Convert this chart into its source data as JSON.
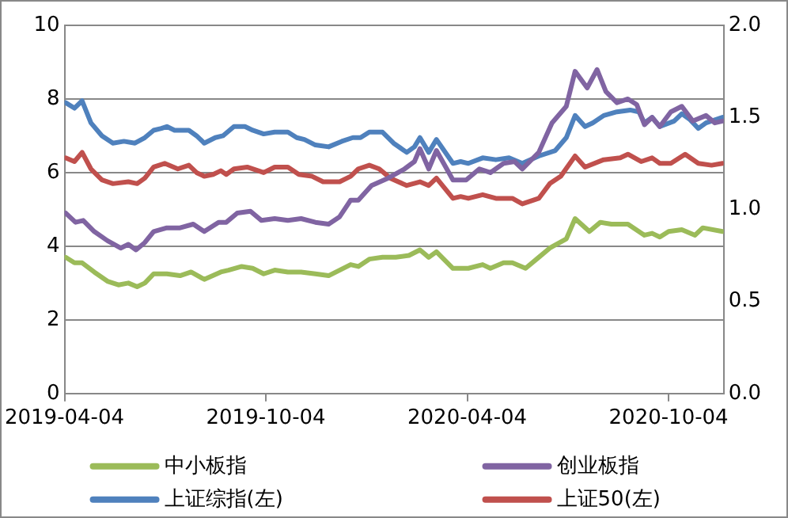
{
  "chart_data": {
    "type": "line",
    "xlim": [
      "2019-04-04",
      "2020-11-23"
    ],
    "xticks": [
      "2019-04-04",
      "2019-10-04",
      "2020-04-04",
      "2020-10-04"
    ],
    "ylim": [
      0,
      10
    ],
    "yticks": [
      0,
      2,
      4,
      6,
      8,
      10
    ],
    "y2lim": [
      0,
      2
    ],
    "y2ticks": [
      {
        "value": 0,
        "label": "0.0"
      },
      {
        "value": 0.5,
        "label": "0.5"
      },
      {
        "value": 1,
        "label": "1.0"
      },
      {
        "value": 1.5,
        "label": "1.5"
      },
      {
        "value": 2,
        "label": "2.0"
      }
    ],
    "grid": "y",
    "legend": "bottom",
    "marker": "none",
    "line_style": "solid",
    "series": [
      {
        "name": "中小板指",
        "color": "#9bbb59",
        "axis": "y2",
        "x": [
          "2019-04-05",
          "2019-04-13",
          "2019-04-20",
          "2019-05-01",
          "2019-05-13",
          "2019-05-23",
          "2019-06-01",
          "2019-06-09",
          "2019-06-16",
          "2019-06-24",
          "2019-07-06",
          "2019-07-18",
          "2019-07-28",
          "2019-08-09",
          "2019-08-24",
          "2019-08-31",
          "2019-09-12",
          "2019-09-22",
          "2019-10-02",
          "2019-10-12",
          "2019-10-24",
          "2019-11-05",
          "2019-11-18",
          "2019-11-30",
          "2019-12-10",
          "2019-12-20",
          "2019-12-27",
          "2020-01-06",
          "2020-01-18",
          "2020-01-30",
          "2020-02-11",
          "2020-02-21",
          "2020-02-29",
          "2020-03-07",
          "2020-03-22",
          "2020-04-05",
          "2020-04-18",
          "2020-04-25",
          "2020-05-07",
          "2020-05-15",
          "2020-05-27",
          "2020-06-08",
          "2020-06-18",
          "2020-07-03",
          "2020-07-11",
          "2020-07-24",
          "2020-08-03",
          "2020-08-13",
          "2020-08-28",
          "2020-09-12",
          "2020-09-19",
          "2020-09-26",
          "2020-10-04",
          "2020-10-16",
          "2020-10-28",
          "2020-11-04",
          "2020-11-22"
        ],
        "values": [
          0.74,
          0.71,
          0.71,
          0.66,
          0.61,
          0.59,
          0.6,
          0.58,
          0.6,
          0.65,
          0.65,
          0.64,
          0.66,
          0.62,
          0.66,
          0.67,
          0.69,
          0.68,
          0.65,
          0.67,
          0.66,
          0.66,
          0.65,
          0.64,
          0.67,
          0.7,
          0.69,
          0.73,
          0.74,
          0.74,
          0.75,
          0.78,
          0.74,
          0.77,
          0.68,
          0.68,
          0.7,
          0.68,
          0.71,
          0.71,
          0.68,
          0.74,
          0.79,
          0.84,
          0.95,
          0.88,
          0.93,
          0.92,
          0.92,
          0.86,
          0.87,
          0.85,
          0.88,
          0.89,
          0.86,
          0.9,
          0.88
        ]
      },
      {
        "name": "创业板指",
        "color": "#8064a2",
        "axis": "y2",
        "x": [
          "2019-04-05",
          "2019-04-14",
          "2019-04-21",
          "2019-05-01",
          "2019-05-13",
          "2019-05-25",
          "2019-06-01",
          "2019-06-08",
          "2019-06-16",
          "2019-06-24",
          "2019-07-06",
          "2019-07-18",
          "2019-07-30",
          "2019-08-09",
          "2019-08-22",
          "2019-08-29",
          "2019-09-08",
          "2019-09-20",
          "2019-09-30",
          "2019-10-12",
          "2019-10-24",
          "2019-11-05",
          "2019-11-18",
          "2019-11-30",
          "2019-12-10",
          "2019-12-20",
          "2019-12-27",
          "2020-01-08",
          "2020-01-23",
          "2020-02-07",
          "2020-02-16",
          "2020-02-21",
          "2020-02-29",
          "2020-03-07",
          "2020-03-22",
          "2020-04-03",
          "2020-04-15",
          "2020-04-25",
          "2020-05-07",
          "2020-05-17",
          "2020-05-24",
          "2020-06-08",
          "2020-06-20",
          "2020-07-03",
          "2020-07-11",
          "2020-07-22",
          "2020-07-31",
          "2020-08-08",
          "2020-08-18",
          "2020-08-28",
          "2020-09-05",
          "2020-09-12",
          "2020-09-19",
          "2020-09-26",
          "2020-10-06",
          "2020-10-16",
          "2020-10-26",
          "2020-11-07",
          "2020-11-15",
          "2020-11-22"
        ],
        "values": [
          0.98,
          0.93,
          0.94,
          0.88,
          0.83,
          0.79,
          0.81,
          0.78,
          0.82,
          0.88,
          0.9,
          0.9,
          0.92,
          0.88,
          0.93,
          0.93,
          0.98,
          0.99,
          0.94,
          0.95,
          0.94,
          0.95,
          0.93,
          0.92,
          0.96,
          1.05,
          1.05,
          1.13,
          1.17,
          1.22,
          1.26,
          1.33,
          1.22,
          1.32,
          1.16,
          1.16,
          1.22,
          1.2,
          1.25,
          1.26,
          1.22,
          1.31,
          1.47,
          1.56,
          1.75,
          1.66,
          1.76,
          1.64,
          1.58,
          1.6,
          1.57,
          1.46,
          1.5,
          1.45,
          1.53,
          1.56,
          1.48,
          1.51,
          1.47,
          1.48
        ]
      },
      {
        "name": "上证综指(左)",
        "color": "#4f81bd",
        "x": [
          "2019-04-05",
          "2019-04-13",
          "2019-04-20",
          "2019-04-28",
          "2019-05-08",
          "2019-05-18",
          "2019-05-28",
          "2019-06-07",
          "2019-06-16",
          "2019-06-24",
          "2019-07-01",
          "2019-07-06",
          "2019-07-13",
          "2019-07-26",
          "2019-08-02",
          "2019-08-09",
          "2019-08-19",
          "2019-08-26",
          "2019-09-05",
          "2019-09-15",
          "2019-09-22",
          "2019-10-02",
          "2019-10-12",
          "2019-10-24",
          "2019-11-01",
          "2019-11-08",
          "2019-11-18",
          "2019-11-30",
          "2019-12-12",
          "2019-12-22",
          "2019-12-29",
          "2020-01-06",
          "2020-01-18",
          "2020-01-28",
          "2020-02-09",
          "2020-02-16",
          "2020-02-21",
          "2020-02-29",
          "2020-03-07",
          "2020-03-22",
          "2020-03-29",
          "2020-04-05",
          "2020-04-18",
          "2020-04-30",
          "2020-05-12",
          "2020-05-24",
          "2020-06-08",
          "2020-06-23",
          "2020-07-03",
          "2020-07-11",
          "2020-07-20",
          "2020-07-27",
          "2020-08-06",
          "2020-08-18",
          "2020-08-30",
          "2020-09-07",
          "2020-09-12",
          "2020-09-19",
          "2020-09-26",
          "2020-10-09",
          "2020-10-16",
          "2020-10-23",
          "2020-10-31",
          "2020-11-07",
          "2020-11-22"
        ],
        "values": [
          7.9,
          7.75,
          7.95,
          7.35,
          7,
          6.8,
          6.85,
          6.8,
          6.95,
          7.15,
          7.2,
          7.25,
          7.15,
          7.15,
          7,
          6.8,
          6.95,
          7,
          7.25,
          7.25,
          7.15,
          7.05,
          7.1,
          7.1,
          6.95,
          6.9,
          6.75,
          6.7,
          6.85,
          6.95,
          6.95,
          7.1,
          7.1,
          6.8,
          6.55,
          6.7,
          6.95,
          6.55,
          6.9,
          6.25,
          6.3,
          6.25,
          6.4,
          6.35,
          6.4,
          6.25,
          6.45,
          6.6,
          6.95,
          7.55,
          7.25,
          7.35,
          7.55,
          7.65,
          7.7,
          7.65,
          7.35,
          7.5,
          7.25,
          7.4,
          7.6,
          7.45,
          7.2,
          7.35,
          7.5
        ]
      },
      {
        "name": "上证50(左)",
        "color": "#c0504d",
        "x": [
          "2019-04-05",
          "2019-04-13",
          "2019-04-20",
          "2019-04-28",
          "2019-05-08",
          "2019-05-18",
          "2019-06-01",
          "2019-06-09",
          "2019-06-16",
          "2019-06-24",
          "2019-07-04",
          "2019-07-16",
          "2019-07-26",
          "2019-08-02",
          "2019-08-09",
          "2019-08-17",
          "2019-08-24",
          "2019-08-29",
          "2019-09-05",
          "2019-09-17",
          "2019-10-02",
          "2019-10-12",
          "2019-10-24",
          "2019-11-03",
          "2019-11-15",
          "2019-11-25",
          "2019-12-10",
          "2019-12-20",
          "2019-12-27",
          "2020-01-06",
          "2020-01-15",
          "2020-01-25",
          "2020-02-09",
          "2020-02-21",
          "2020-02-29",
          "2020-03-07",
          "2020-03-22",
          "2020-03-29",
          "2020-04-05",
          "2020-04-18",
          "2020-04-30",
          "2020-05-15",
          "2020-05-24",
          "2020-06-08",
          "2020-06-18",
          "2020-06-28",
          "2020-07-11",
          "2020-07-20",
          "2020-08-06",
          "2020-08-21",
          "2020-08-28",
          "2020-09-09",
          "2020-09-19",
          "2020-09-26",
          "2020-10-06",
          "2020-10-19",
          "2020-10-31",
          "2020-11-12",
          "2020-11-22"
        ],
        "values": [
          6.4,
          6.3,
          6.55,
          6.1,
          5.8,
          5.7,
          5.75,
          5.7,
          5.85,
          6.15,
          6.25,
          6.1,
          6.2,
          6,
          5.9,
          5.95,
          6.05,
          5.95,
          6.1,
          6.15,
          6,
          6.15,
          6.15,
          5.95,
          5.9,
          5.75,
          5.75,
          5.9,
          6.1,
          6.2,
          6.1,
          5.85,
          5.65,
          5.75,
          5.65,
          5.85,
          5.3,
          5.35,
          5.3,
          5.4,
          5.3,
          5.3,
          5.15,
          5.3,
          5.7,
          5.9,
          6.45,
          6.15,
          6.35,
          6.4,
          6.5,
          6.3,
          6.4,
          6.25,
          6.25,
          6.5,
          6.25,
          6.2,
          6.25
        ]
      }
    ]
  }
}
